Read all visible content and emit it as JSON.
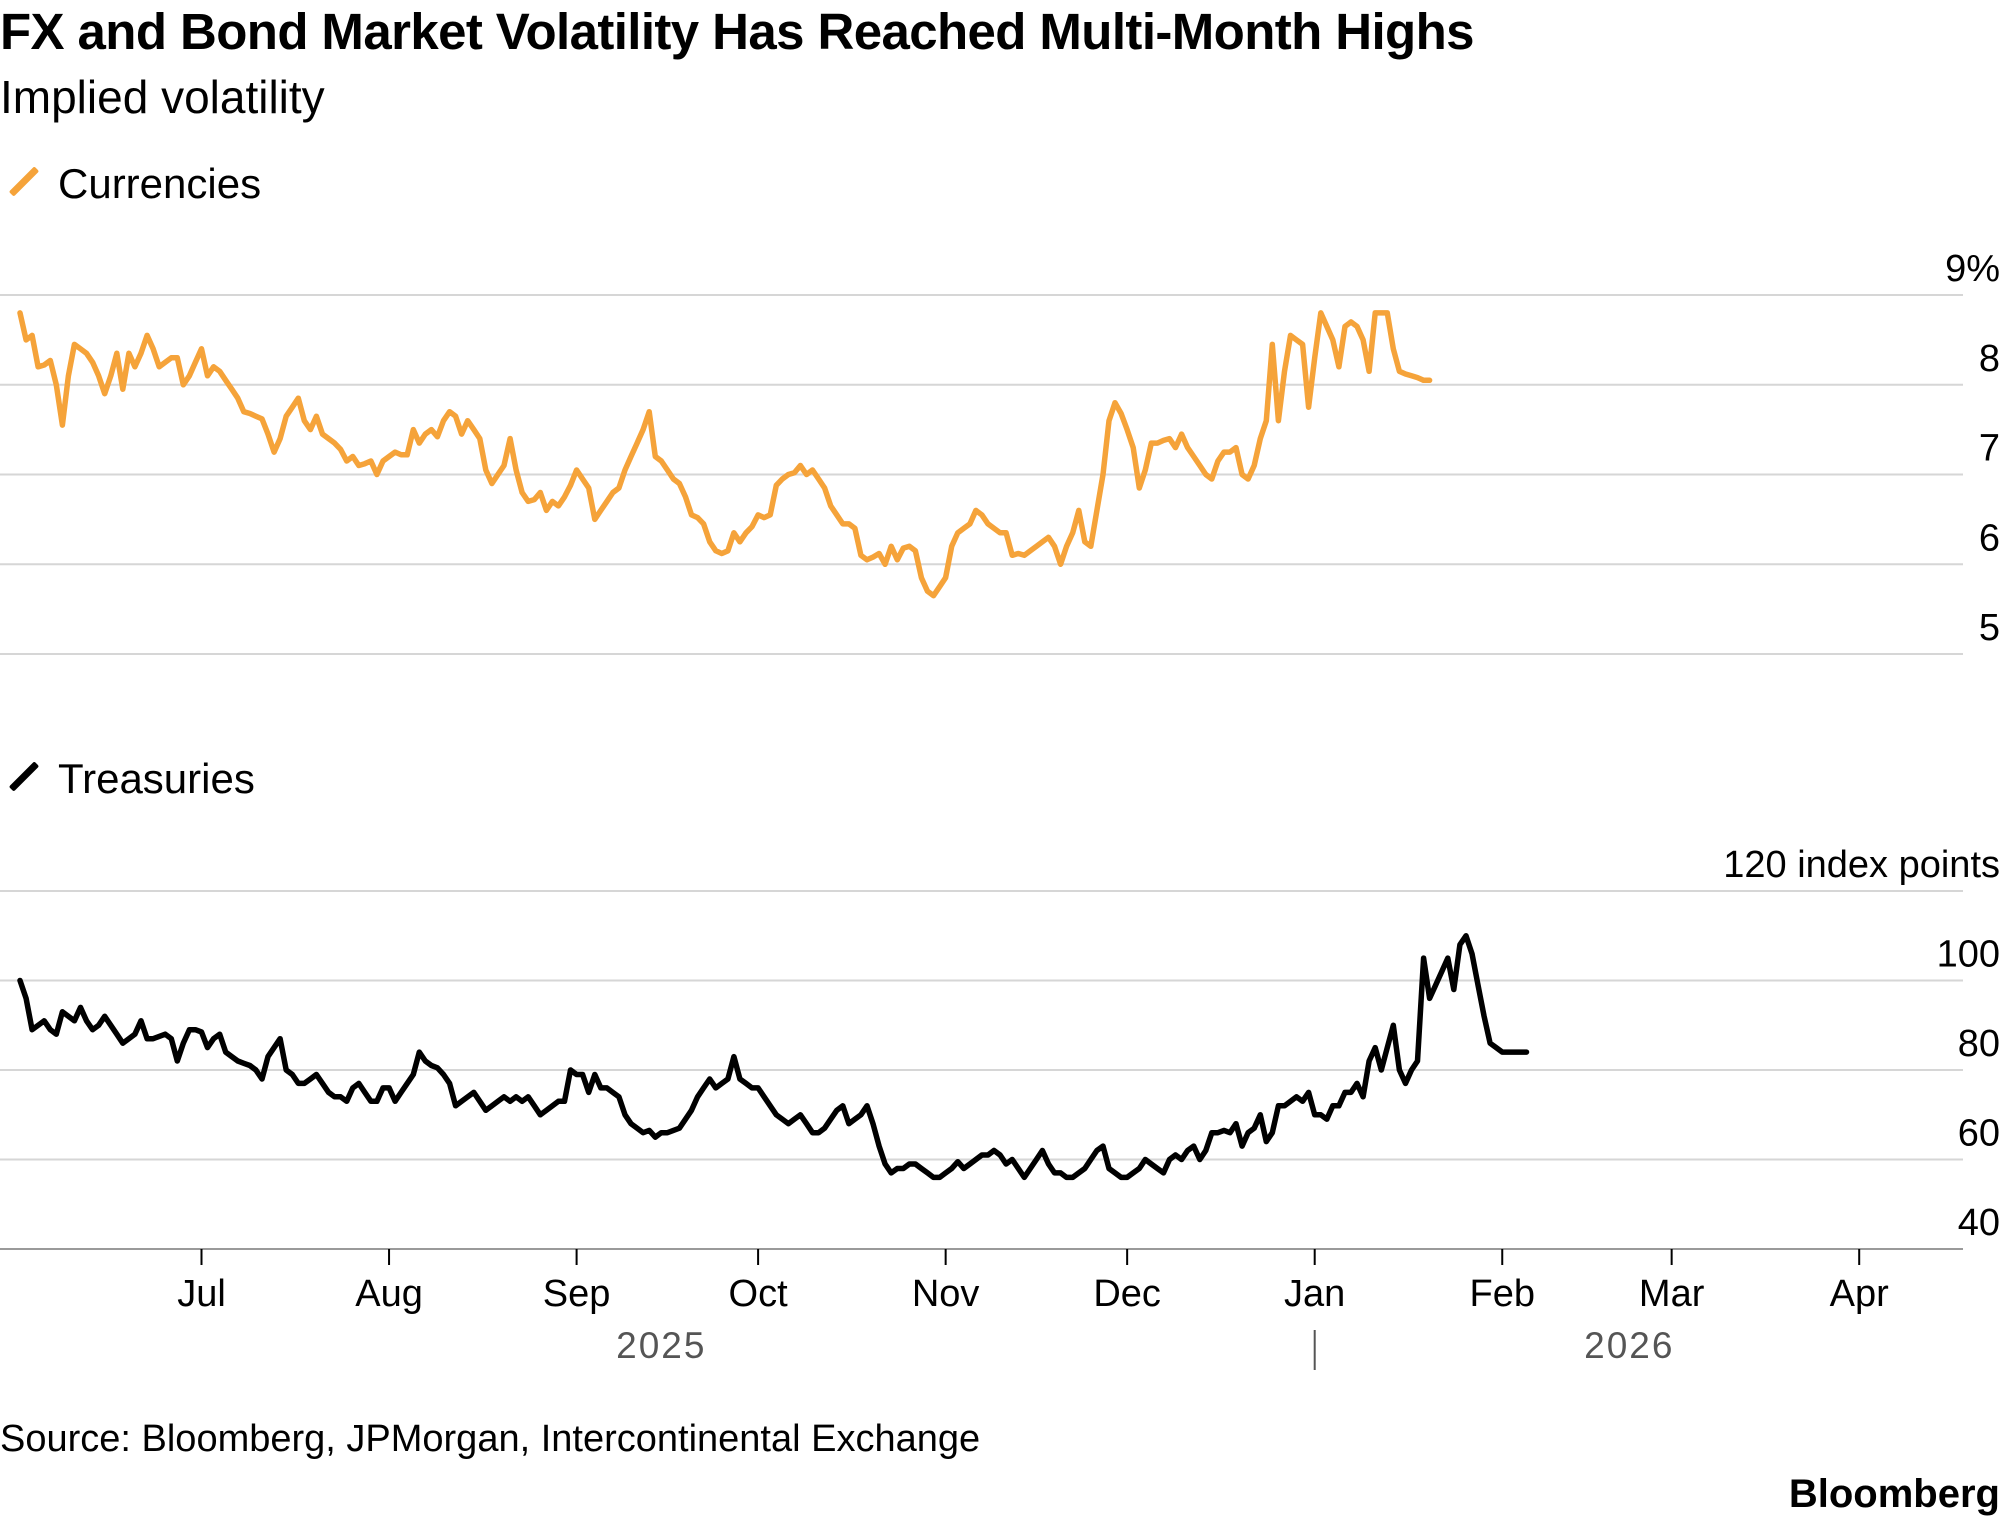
{
  "title": "FX and Bond Market Volatility Has Reached Multi-Month Highs",
  "subtitle": "Implied volatility",
  "source": "Source: Bloomberg, JPMorgan, Intercontinental Exchange",
  "brand": "Bloomberg",
  "colors": {
    "currencies": "#F5A33A",
    "treasuries": "#000000",
    "grid": "#d6d6d6",
    "axis": "#9a9a9a"
  },
  "chart_data": [
    {
      "type": "line",
      "title": "Currencies",
      "legend": "Currencies",
      "y_tick_labels": [
        "9%",
        "8",
        "7",
        "6",
        "5"
      ],
      "y_ticks": [
        9,
        8,
        7,
        6,
        5
      ],
      "ylim": [
        5,
        9
      ],
      "x_start": "2025-06-01",
      "x_step_days": 1,
      "series": [
        {
          "name": "Currencies",
          "values": [
            8.8,
            8.5,
            8.55,
            8.2,
            8.22,
            8.27,
            8.0,
            7.55,
            8.1,
            8.45,
            8.4,
            8.35,
            8.25,
            8.1,
            7.9,
            8.1,
            8.35,
            7.95,
            8.35,
            8.2,
            8.35,
            8.55,
            8.4,
            8.2,
            8.25,
            8.3,
            8.3,
            8.0,
            8.1,
            8.25,
            8.4,
            8.1,
            8.2,
            8.15,
            8.05,
            7.95,
            7.85,
            7.7,
            7.68,
            7.65,
            7.62,
            7.45,
            7.25,
            7.4,
            7.65,
            7.75,
            7.85,
            7.6,
            7.5,
            7.65,
            7.45,
            7.4,
            7.35,
            7.28,
            7.15,
            7.2,
            7.1,
            7.12,
            7.15,
            7.0,
            7.15,
            7.2,
            7.25,
            7.22,
            7.22,
            7.5,
            7.35,
            7.45,
            7.5,
            7.42,
            7.6,
            7.7,
            7.65,
            7.45,
            7.6,
            7.5,
            7.4,
            7.05,
            6.9,
            7.0,
            7.1,
            7.4,
            7.05,
            6.8,
            6.7,
            6.72,
            6.8,
            6.6,
            6.7,
            6.65,
            6.75,
            6.88,
            7.05,
            6.95,
            6.85,
            6.5,
            6.6,
            6.7,
            6.8,
            6.85,
            7.05,
            7.2,
            7.35,
            7.5,
            7.7,
            7.2,
            7.15,
            7.05,
            6.95,
            6.9,
            6.75,
            6.55,
            6.52,
            6.45,
            6.25,
            6.15,
            6.12,
            6.15,
            6.35,
            6.25,
            6.35,
            6.42,
            6.55,
            6.52,
            6.55,
            6.88,
            6.95,
            7.0,
            7.02,
            7.1,
            7.0,
            7.05,
            6.95,
            6.85,
            6.65,
            6.55,
            6.45,
            6.45,
            6.4,
            6.1,
            6.05,
            6.08,
            6.12,
            6.0,
            6.2,
            6.05,
            6.18,
            6.2,
            6.15,
            5.85,
            5.7,
            5.65,
            5.75,
            5.85,
            6.2,
            6.35,
            6.4,
            6.45,
            6.6,
            6.55,
            6.45,
            6.4,
            6.35,
            6.35,
            6.1,
            6.12,
            6.1,
            6.15,
            6.2,
            6.25,
            6.3,
            6.2,
            6.0,
            6.2,
            6.35,
            6.6,
            6.25,
            6.2,
            6.6,
            7.0,
            7.6,
            7.8,
            7.68,
            7.5,
            7.3,
            6.85,
            7.05,
            7.35,
            7.35,
            7.38,
            7.4,
            7.3,
            7.45,
            7.3,
            7.2,
            7.1,
            7.0,
            6.95,
            7.15,
            7.25,
            7.25,
            7.3,
            7.0,
            6.95,
            7.1,
            7.4,
            7.6,
            8.45,
            7.6,
            8.15,
            8.55,
            8.5,
            8.45,
            7.75,
            8.3,
            8.8,
            8.65,
            8.5,
            8.2,
            8.65,
            8.7,
            8.65,
            8.5,
            8.15,
            8.8,
            8.8,
            8.8,
            8.4,
            8.15,
            8.12,
            8.1,
            8.08,
            8.05,
            8.05
          ]
        }
      ]
    },
    {
      "type": "line",
      "title": "Treasuries",
      "legend": "Treasuries",
      "y_tick_labels": [
        "120 index points",
        "100",
        "80",
        "60",
        "40"
      ],
      "y_ticks": [
        120,
        100,
        80,
        60,
        40
      ],
      "ylim": [
        40,
        120
      ],
      "x_start": "2025-06-01",
      "x_step_days": 1,
      "x_tick_labels": [
        "Jul",
        "Aug",
        "Sep",
        "Oct",
        "Nov",
        "Dec",
        "Jan",
        "Feb",
        "Mar",
        "Apr"
      ],
      "x_tick_dates": [
        "2025-07-01",
        "2025-08-01",
        "2025-09-01",
        "2025-10-01",
        "2025-11-01",
        "2025-12-01",
        "2026-01-01",
        "2026-02-01",
        "2026-03-01",
        "2026-04-01"
      ],
      "year_labels": [
        "2025",
        "2026"
      ],
      "series": [
        {
          "name": "Treasuries",
          "values": [
            100,
            96,
            89,
            90,
            91,
            89,
            88,
            93,
            92,
            91,
            94,
            91,
            89,
            90,
            92,
            90,
            88,
            86,
            87,
            88,
            91,
            87,
            87,
            87.5,
            88,
            87,
            82,
            86,
            89,
            89,
            88.5,
            85,
            87,
            88,
            84,
            83,
            82,
            81.5,
            81,
            80,
            78,
            83,
            85,
            87,
            80,
            79,
            77,
            77,
            78,
            79,
            77,
            75,
            74,
            74,
            73,
            76,
            77,
            75,
            73,
            73,
            76,
            76,
            73,
            75,
            77,
            79,
            84,
            82,
            81,
            80.5,
            79,
            77,
            72,
            73,
            74,
            75,
            73,
            71,
            72,
            73,
            74,
            73,
            74,
            73,
            74,
            72,
            70,
            71,
            72,
            73,
            73,
            80,
            79,
            79,
            75,
            79,
            76,
            76,
            75,
            74,
            70,
            68,
            67,
            66,
            66.5,
            65,
            66,
            66,
            66.5,
            67,
            69,
            71,
            74,
            76,
            78,
            76,
            77,
            78,
            83,
            78,
            77,
            76,
            76,
            74,
            72,
            70,
            69,
            68,
            69,
            70,
            68,
            66,
            66,
            67,
            69,
            71,
            72,
            68,
            69,
            70,
            72,
            68,
            63,
            59,
            57,
            58,
            58,
            59,
            59,
            58,
            57,
            56,
            56,
            57,
            58,
            59.5,
            58,
            59,
            60,
            61,
            61,
            62,
            61,
            59,
            60,
            58,
            56,
            58,
            60,
            62,
            59,
            57,
            57,
            56,
            56,
            57,
            58,
            60,
            62,
            63,
            58,
            57,
            56,
            56,
            57,
            58,
            60,
            59,
            58,
            57,
            60,
            61,
            60,
            62,
            63,
            60,
            62,
            66,
            66,
            66.5,
            66,
            68,
            63,
            66,
            67,
            70,
            64,
            66,
            72,
            72,
            73,
            74,
            73,
            75,
            70,
            70,
            69,
            72,
            72,
            75,
            75,
            77,
            74,
            82,
            85,
            80,
            85,
            90,
            80,
            77,
            80,
            82,
            105,
            96,
            99,
            102,
            105,
            98,
            108,
            110,
            106,
            99,
            92,
            86,
            85,
            84,
            84,
            84,
            84,
            84
          ]
        }
      ]
    }
  ]
}
